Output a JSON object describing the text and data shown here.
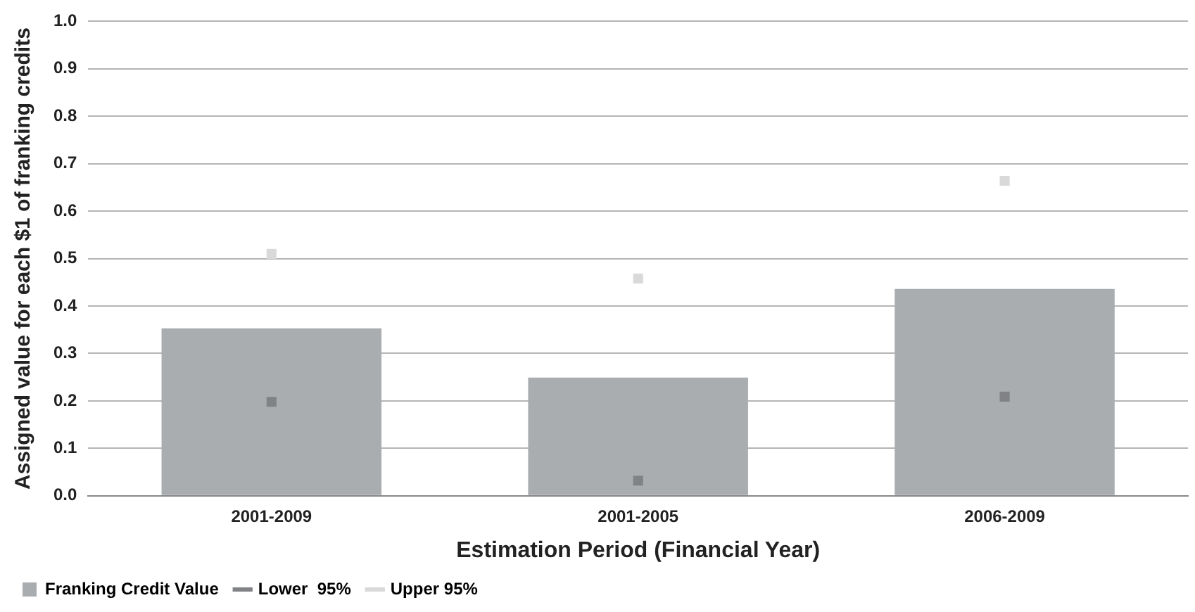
{
  "chart_data": {
    "type": "bar",
    "xlabel": "Estimation Period (Financial Year)",
    "ylabel": "Assigned value for each $1 of franking credits",
    "categories": [
      "2001-2009",
      "2001-2005",
      "2006-2009"
    ],
    "series": [
      {
        "name": "Franking Credit Value",
        "color": "#aaadb0",
        "values": [
          0.353,
          0.249,
          0.436
        ]
      },
      {
        "name": "Lower  95%",
        "type": "scatter",
        "color": "#808285",
        "values": [
          0.198,
          0.032,
          0.209
        ]
      },
      {
        "name": "Upper 95%",
        "type": "scatter",
        "color": "#d9d9d9",
        "values": [
          0.51,
          0.458,
          0.664
        ]
      }
    ],
    "ylim": [
      0,
      1
    ],
    "yticks": [
      {
        "value": 0,
        "label": "0.0"
      },
      0.1,
      0.2,
      0.3,
      0.4,
      0.5,
      0.6,
      0.7,
      0.8,
      0.9,
      {
        "value": 1,
        "label": "1.0"
      }
    ],
    "grid": "y",
    "marker": "square",
    "legend": "bottom left"
  }
}
